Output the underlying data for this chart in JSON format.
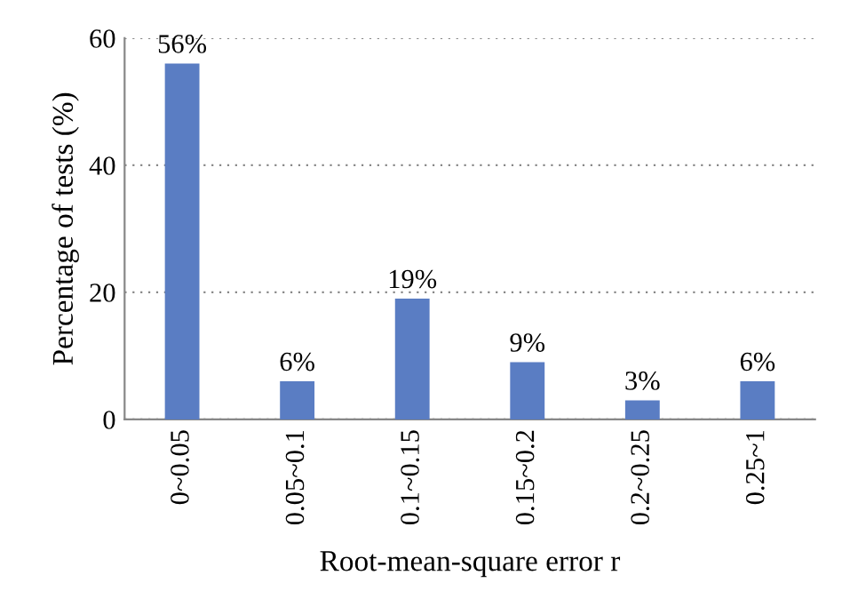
{
  "chart_data": {
    "type": "bar",
    "xlabel": "Root-mean-square error r",
    "ylabel": "Percentage of tests (%)",
    "categories": [
      "0~0.05",
      "0.05~0.1",
      "0.1~0.15",
      "0.15~0.2",
      "0.2~0.25",
      "0.25~1"
    ],
    "values": [
      56,
      6,
      19,
      9,
      3,
      6
    ],
    "value_labels": [
      "56%",
      "6%",
      "19%",
      "9%",
      "3%",
      "6%"
    ],
    "color": "#5a7dc3",
    "ylim": [
      0,
      60
    ],
    "yticks": [
      0,
      20,
      40,
      60
    ],
    "grid": "y"
  }
}
